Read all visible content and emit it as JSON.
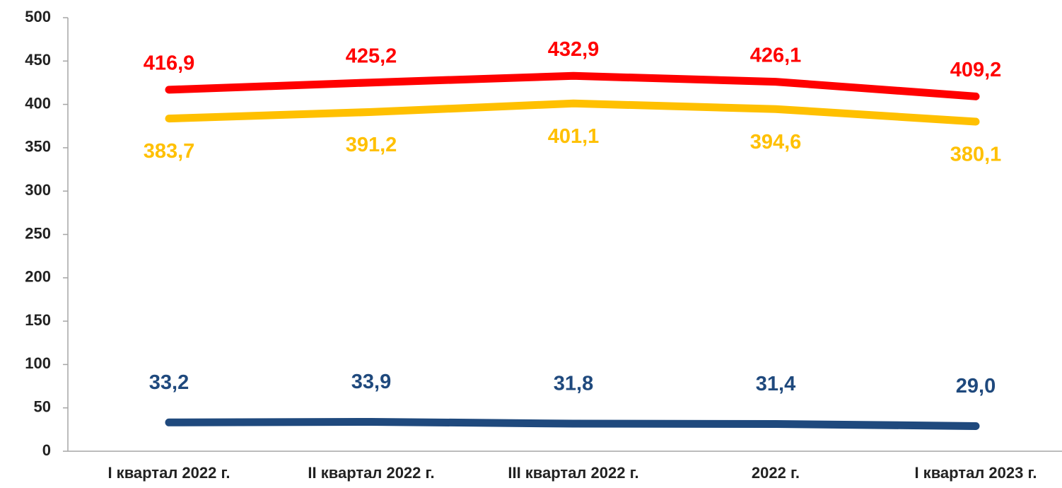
{
  "chart_data": {
    "type": "line",
    "categories": [
      "I квартал 2022 г.",
      "II квартал 2022 г.",
      "III квартал 2022 г.",
      "2022 г.",
      "I квартал 2023 г."
    ],
    "series": [
      {
        "color": "#ff0000",
        "values": [
          416.9,
          425.2,
          432.9,
          426.1,
          409.2
        ],
        "value_labels": [
          "416,9",
          "425,2",
          "432,9",
          "426,1",
          "409,2"
        ]
      },
      {
        "color": "#ffc000",
        "values": [
          383.7,
          391.2,
          401.1,
          394.6,
          380.1
        ],
        "value_labels": [
          "383,7",
          "391,2",
          "401,1",
          "394,6",
          "380,1"
        ]
      },
      {
        "color": "#1f497d",
        "values": [
          33.2,
          33.9,
          31.8,
          31.4,
          29.0
        ],
        "value_labels": [
          "33,2",
          "33,9",
          "31,8",
          "31,4",
          "29,0"
        ]
      }
    ],
    "ylim": [
      0,
      500
    ],
    "yticks": [
      0,
      50,
      100,
      150,
      200,
      250,
      300,
      350,
      400,
      450,
      500
    ],
    "grid": false
  }
}
